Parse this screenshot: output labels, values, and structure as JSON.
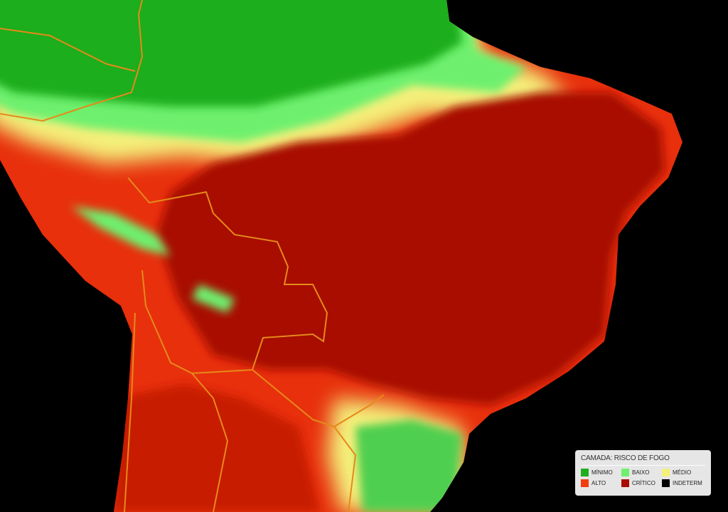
{
  "legend": {
    "title": "CAMADA: RISCO DE FOGO",
    "items": [
      {
        "label": "MÍNIMO",
        "color": "#1fae1f"
      },
      {
        "label": "BAIXO",
        "color": "#6ef06e"
      },
      {
        "label": "MÉDIO",
        "color": "#f4f07a"
      },
      {
        "label": "ALTO",
        "color": "#f23c10"
      },
      {
        "label": "CRÍTICO",
        "color": "#a80c02"
      },
      {
        "label": "INDETERMINADO",
        "color": "#000000"
      }
    ]
  }
}
